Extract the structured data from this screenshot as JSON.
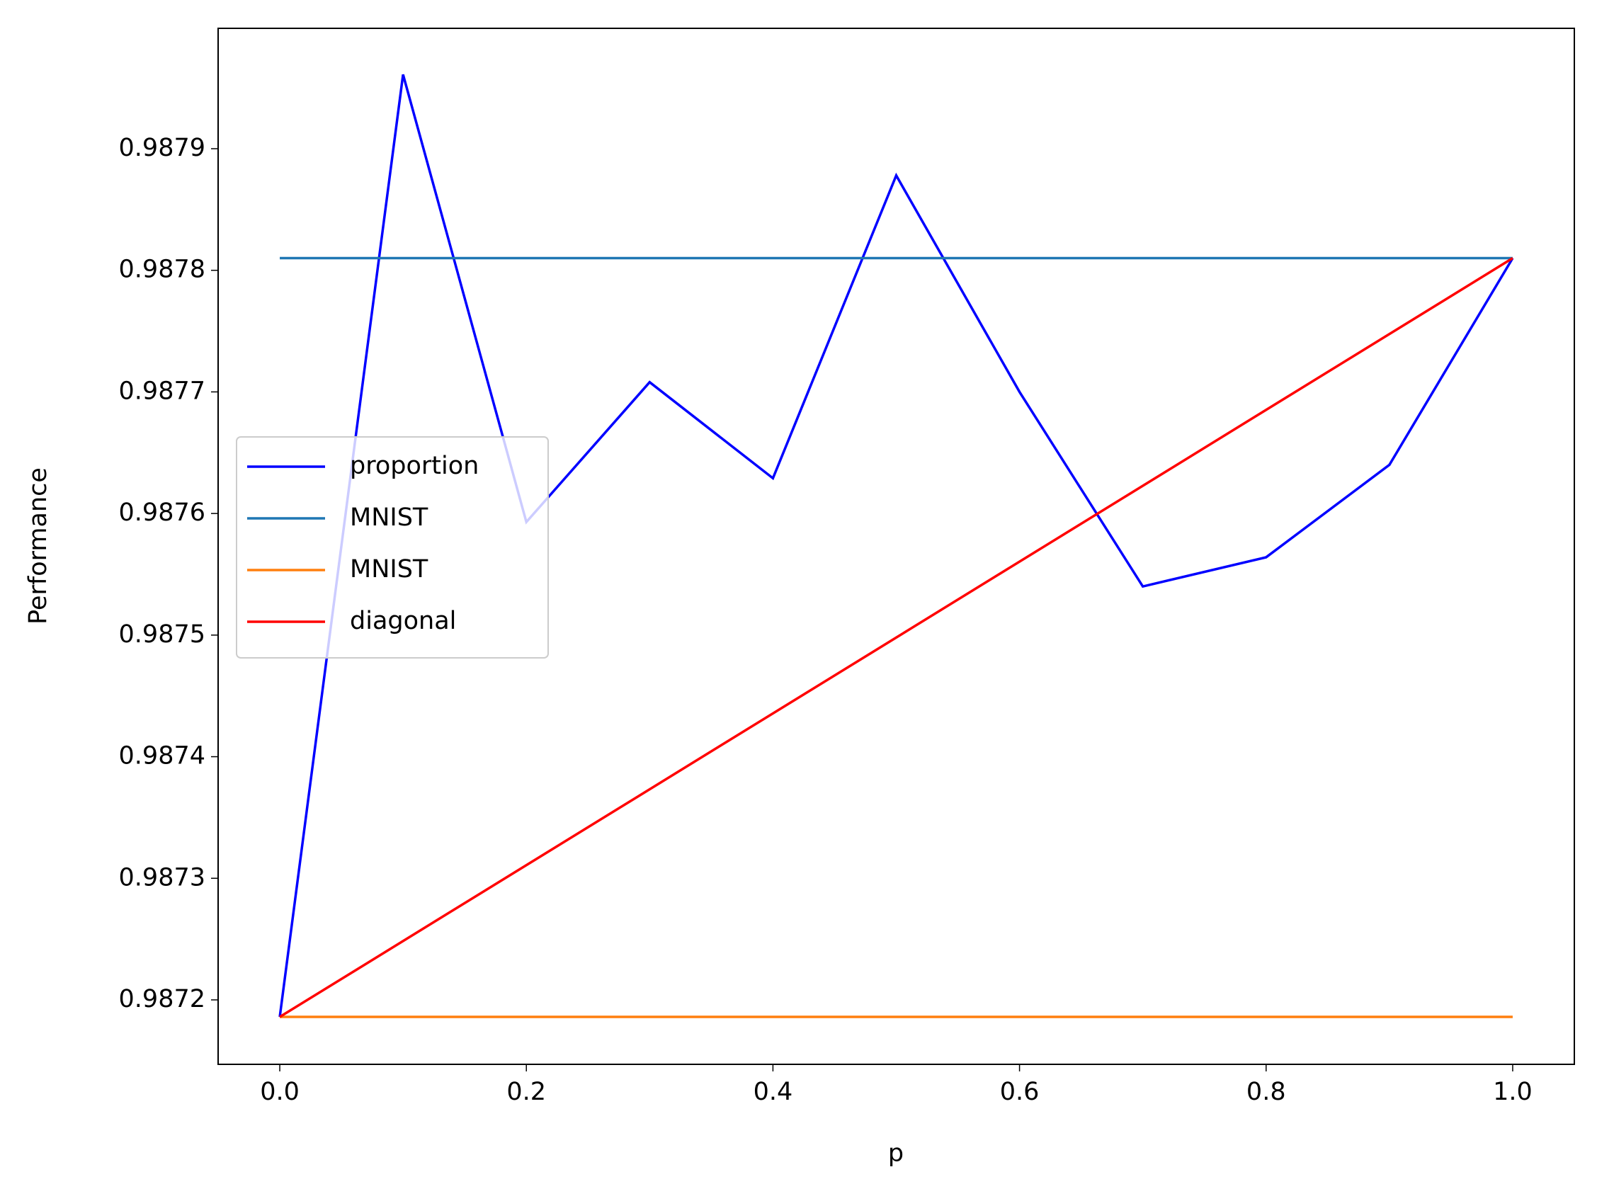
{
  "chart_data": {
    "type": "line",
    "xlabel": "p",
    "ylabel": "Performance",
    "x": [
      0,
      0.1,
      0.2,
      0.3,
      0.4,
      0.5,
      0.6,
      0.7,
      0.8,
      0.9,
      1
    ],
    "series": [
      {
        "name": "proportion",
        "color": "#0000ff",
        "x": [
          0,
          0.1,
          0.2,
          0.3,
          0.4,
          0.5,
          0.6,
          0.7,
          0.8,
          0.9,
          1
        ],
        "values": [
          0.987186,
          0.987961,
          0.987593,
          0.987708,
          0.987629,
          0.987878,
          0.9877,
          0.98754,
          0.987564,
          0.98764,
          0.98781
        ]
      },
      {
        "name": "MNIST",
        "color": "#1f77b4",
        "x": [
          0,
          1
        ],
        "values": [
          0.98781,
          0.98781
        ]
      },
      {
        "name": "MNIST",
        "color": "#ff7f0e",
        "x": [
          0,
          1
        ],
        "values": [
          0.987186,
          0.987186
        ]
      },
      {
        "name": "diagonal",
        "color": "#ff0000",
        "x": [
          0,
          1
        ],
        "values": [
          0.987186,
          0.98781
        ]
      }
    ],
    "xlim": [
      -0.05,
      1.05
    ],
    "ylim": [
      0.987147,
      0.987999
    ],
    "xticks": [
      {
        "value": 0,
        "label": "0.0"
      },
      0.2,
      0.4,
      0.6,
      0.8,
      {
        "value": 1,
        "label": "1.0"
      }
    ],
    "yticks": [
      0.9872,
      0.9873,
      0.9874,
      0.9875,
      0.9876,
      0.9877,
      0.9878,
      0.9879
    ],
    "legend": "center left",
    "grid": false
  }
}
